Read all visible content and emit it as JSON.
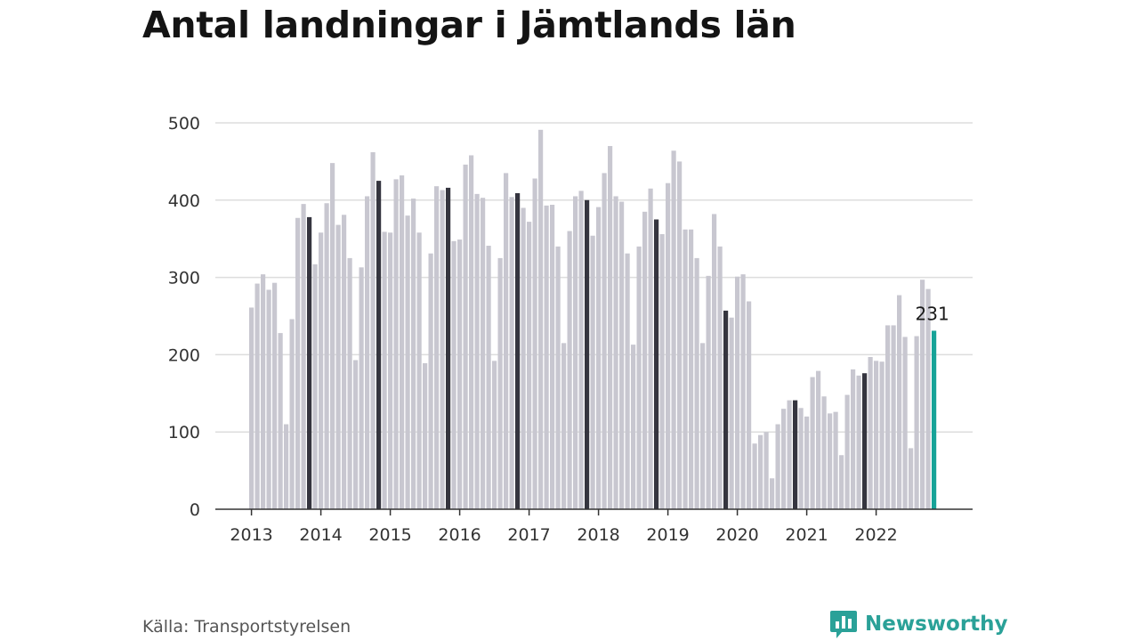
{
  "title": "Antal landningar i Jämtlands län",
  "source": "Källa: Transportstyrelsen",
  "brand": {
    "name": "Newsworthy",
    "icon": "newsworthy-logo-icon"
  },
  "colors": {
    "bar": "#c8c7d0",
    "highlight": "#35353f",
    "latest": "#17a398",
    "grid": "#dddddd",
    "axis": "#333333"
  },
  "chart_data": {
    "type": "bar",
    "title": "Antal landningar i Jämtlands län",
    "xlabel": "",
    "ylabel": "",
    "ylim": [
      0,
      500
    ],
    "yticks": [
      "0",
      "100",
      "200",
      "300",
      "400",
      "500"
    ],
    "xticks": [
      "2013",
      "2014",
      "2015",
      "2016",
      "2017",
      "2018",
      "2019",
      "2020",
      "2021",
      "2022"
    ],
    "grid": true,
    "highlight_month": "november",
    "annotation": {
      "label": "231",
      "value": 231
    },
    "values": [
      261,
      292,
      304,
      284,
      293,
      228,
      110,
      246,
      377,
      395,
      378,
      317,
      358,
      396,
      448,
      368,
      381,
      325,
      193,
      313,
      405,
      462,
      425,
      359,
      358,
      427,
      432,
      380,
      402,
      358,
      189,
      331,
      418,
      413,
      416,
      347,
      349,
      446,
      458,
      408,
      403,
      341,
      192,
      325,
      435,
      404,
      409,
      390,
      372,
      428,
      491,
      393,
      394,
      340,
      215,
      360,
      405,
      412,
      400,
      354,
      391,
      435,
      470,
      405,
      398,
      331,
      213,
      340,
      385,
      415,
      375,
      356,
      422,
      464,
      450,
      362,
      362,
      325,
      215,
      302,
      382,
      340,
      257,
      248,
      301,
      304,
      269,
      85,
      96,
      100,
      40,
      110,
      130,
      141,
      141,
      131,
      120,
      171,
      179,
      146,
      124,
      126,
      70,
      148,
      181,
      173,
      176,
      197,
      192,
      191,
      238,
      238,
      277,
      223,
      79,
      224,
      297,
      285,
      231
    ]
  }
}
